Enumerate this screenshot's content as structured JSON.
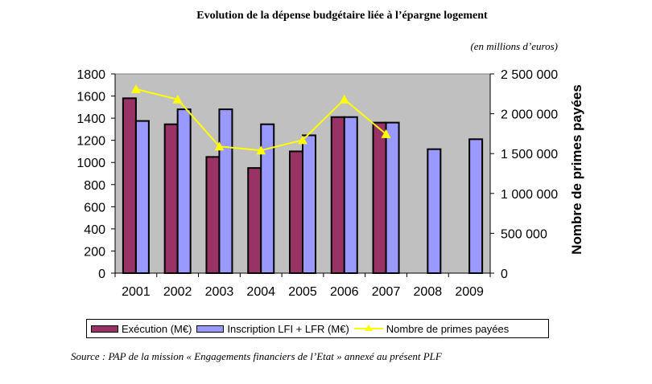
{
  "header": {
    "title": "Evolution de la dépense budgétaire liée à l’épargne logement",
    "unit_note": "(en millions d’euros)"
  },
  "footer": {
    "source": "Source : PAP de la mission « Engagements financiers de l’Etat » annexé au présent PLF"
  },
  "colors": {
    "plot_background": "#C0C0C0",
    "execution": "#993366",
    "inscription": "#9999FF",
    "primes_line": "#FFFF00"
  },
  "chart_data": {
    "type": "bar",
    "title": "Evolution de la dépense budgétaire liée à l’épargne logement",
    "subtitle": "(en millions d’euros)",
    "xlabel": "",
    "ylabel": "",
    "y2label": "Nombre de primes payées",
    "categories": [
      "2001",
      "2002",
      "2003",
      "2004",
      "2005",
      "2006",
      "2007",
      "2008",
      "2009"
    ],
    "ylim": [
      0,
      1800
    ],
    "yticks": [
      0,
      200,
      400,
      600,
      800,
      1000,
      1200,
      1400,
      1600,
      1800
    ],
    "ytick_labels": [
      "0",
      "200",
      "400",
      "600",
      "800",
      "1000",
      "1200",
      "1400",
      "1600",
      "1800"
    ],
    "y2lim": [
      0,
      2500000
    ],
    "y2ticks": [
      0,
      500000,
      1000000,
      1500000,
      2000000,
      2500000
    ],
    "y2tick_labels": [
      "0",
      "500 000",
      "1 000 000",
      "1 500 000",
      "2 000 000",
      "2 500 000"
    ],
    "grid": false,
    "legend_position": "bottom",
    "series": [
      {
        "name": "Exécution (M€)",
        "type": "bar",
        "axis": "left",
        "values": [
          1580,
          1345,
          1050,
          950,
          1100,
          1410,
          1360,
          null,
          null
        ]
      },
      {
        "name": "Inscription LFI + LFR (M€)",
        "type": "bar",
        "axis": "left",
        "values": [
          1375,
          1480,
          1480,
          1345,
          1245,
          1410,
          1360,
          1120,
          1210
        ]
      },
      {
        "name": "Nombre de primes payées",
        "type": "line",
        "axis": "right",
        "marker": "triangle",
        "values": [
          2310000,
          2180000,
          1590000,
          1540000,
          1670000,
          2180000,
          1745000,
          null,
          null
        ]
      }
    ]
  }
}
